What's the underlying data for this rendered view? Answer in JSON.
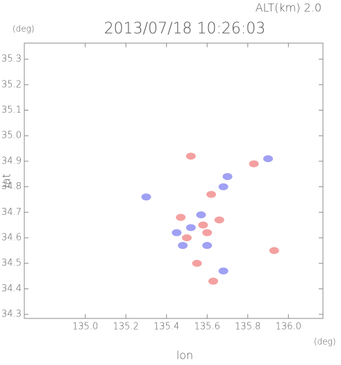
{
  "chart_data": {
    "type": "scatter",
    "title": "2013/07/18 10:26:03",
    "subtitle": "ALT(km) 2.0",
    "y_unit": "(deg)",
    "x_unit": "(deg)",
    "xlabel": "lon",
    "ylabel": "lat",
    "xlim": [
      134.7,
      136.17
    ],
    "ylim": [
      34.284,
      35.363
    ],
    "xticks": [
      {
        "value": 135,
        "label": "135.0"
      },
      135.2,
      135.4,
      135.6,
      135.8,
      {
        "value": 136,
        "label": "136.0"
      }
    ],
    "yticks": [
      34.3,
      34.4,
      34.5,
      34.6,
      34.7,
      34.8,
      34.9,
      {
        "value": 35,
        "label": "35.0"
      },
      35.1,
      35.2,
      35.3
    ],
    "series": [
      {
        "color": "#f08080",
        "x": [
          135.93,
          135.63,
          135.52,
          135.83,
          135.5,
          135.58,
          135.55,
          135.62,
          135.47,
          135.66,
          135.6
        ],
        "values": [
          34.55,
          34.43,
          34.92,
          34.89,
          34.6,
          34.65,
          34.5,
          34.77,
          34.68,
          34.67,
          34.62
        ]
      },
      {
        "color": "#8080f0",
        "x": [
          135.68,
          135.9,
          135.7,
          135.45,
          135.6,
          135.3,
          135.68,
          135.52,
          135.57,
          135.48
        ],
        "values": [
          34.47,
          34.91,
          34.84,
          34.62,
          34.57,
          34.76,
          34.8,
          34.64,
          34.69,
          34.57
        ]
      }
    ]
  }
}
